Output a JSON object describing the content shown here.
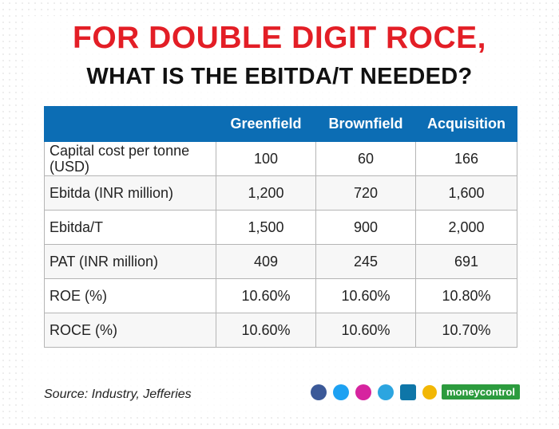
{
  "header": {
    "title_line1": "FOR DOUBLE DIGIT ROCE,",
    "title_line2": "WHAT IS THE EBITDA/T NEEDED?"
  },
  "table": {
    "columns": [
      "",
      "Greenfield",
      "Brownfield",
      "Acquisition"
    ],
    "rows": [
      [
        "Capital cost per tonne (USD)",
        "100",
        "60",
        "166"
      ],
      [
        "Ebitda (INR million)",
        "1,200",
        "720",
        "1,600"
      ],
      [
        "Ebitda/T",
        "1,500",
        "900",
        "2,000"
      ],
      [
        "PAT (INR million)",
        "409",
        "245",
        "691"
      ],
      [
        "ROE (%)",
        "10.60%",
        "10.60%",
        "10.80%"
      ],
      [
        "ROCE (%)",
        "10.60%",
        "10.60%",
        "10.70%"
      ]
    ]
  },
  "footer": {
    "source": "Source: Industry, Jefferies",
    "brand": "moneycontrol"
  }
}
